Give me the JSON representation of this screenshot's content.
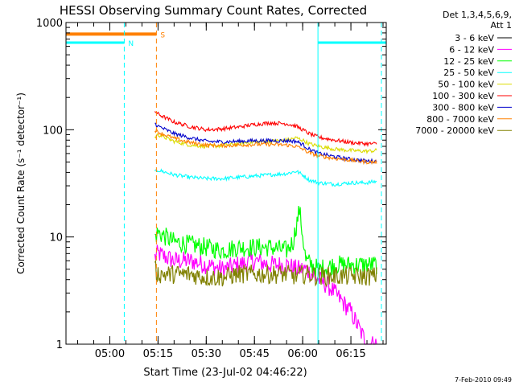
{
  "chart_data": {
    "type": "line",
    "title": "HESSI Observing Summary Count Rates, Corrected",
    "ylabel": "Corrected Count Rate (s⁻¹ detector⁻¹)",
    "xlabel": "Start Time (23-Jul-02 04:46:22)",
    "y_scale": "log",
    "ylim": [
      1,
      1000
    ],
    "xlim": [
      "04:46:22",
      "06:26:00"
    ],
    "y_ticks": [
      "1",
      "10",
      "100",
      "1000"
    ],
    "x_ticks": [
      "05:00",
      "05:15",
      "05:30",
      "05:45",
      "06:00",
      "06:15"
    ],
    "legend_header": [
      "Det 1,3,4,5,6,9,",
      "Att 1"
    ],
    "legend_position": "right",
    "footer_date": "7-Feb-2010 09:49",
    "flag_labels": {
      "night": "N",
      "saa": "S"
    },
    "series": [
      {
        "name": "3 - 6 keV",
        "color": "#000000",
        "x": [],
        "y": []
      },
      {
        "name": "6 - 12 keV",
        "color": "#ff00ff",
        "x": [
          "05:14",
          "05:15",
          "05:20",
          "05:25",
          "05:30",
          "05:35",
          "05:40",
          "05:45",
          "05:50",
          "05:55",
          "05:58",
          "06:01",
          "06:05",
          "06:08",
          "06:10",
          "06:15",
          "06:20",
          "06:23"
        ],
        "y": [
          6.5,
          7,
          6,
          6,
          5.5,
          5,
          5.5,
          6,
          5.5,
          5.5,
          5,
          5,
          4,
          3.5,
          3,
          2,
          1,
          1
        ]
      },
      {
        "name": "12 - 25 keV",
        "color": "#00ff00",
        "x": [
          "05:14",
          "05:15",
          "05:20",
          "05:25",
          "05:30",
          "05:35",
          "05:40",
          "05:45",
          "05:50",
          "05:55",
          "05:57",
          "05:59",
          "06:01",
          "06:05",
          "06:10",
          "06:15",
          "06:20",
          "06:23"
        ],
        "y": [
          10,
          11,
          9,
          8.5,
          8,
          7.5,
          8,
          8,
          8,
          7.5,
          9,
          18,
          6,
          5,
          5.5,
          5.5,
          5.5,
          5.5
        ]
      },
      {
        "name": "25 - 50 keV",
        "color": "#00ffff",
        "x": [
          "05:14",
          "05:15",
          "05:20",
          "05:25",
          "05:30",
          "05:35",
          "05:40",
          "05:45",
          "05:50",
          "05:55",
          "05:58",
          "06:00",
          "06:02",
          "06:05",
          "06:10",
          "06:15",
          "06:20",
          "06:23"
        ],
        "y": [
          40,
          42,
          38,
          36,
          35,
          35,
          36,
          37,
          38,
          39,
          41,
          38,
          34,
          32,
          31,
          32,
          32,
          33
        ]
      },
      {
        "name": "50 - 100 keV",
        "color": "#dcdc00",
        "x": [
          "05:14",
          "05:15",
          "05:20",
          "05:25",
          "05:30",
          "05:35",
          "05:40",
          "05:45",
          "05:50",
          "05:55",
          "05:58",
          "06:00",
          "06:02",
          "06:05",
          "06:10",
          "06:15",
          "06:20",
          "06:23"
        ],
        "y": [
          85,
          90,
          78,
          72,
          70,
          71,
          74,
          77,
          78,
          80,
          84,
          80,
          74,
          70,
          66,
          64,
          63,
          64
        ]
      },
      {
        "name": "100 - 300 keV",
        "color": "#ff0000",
        "x": [
          "05:14",
          "05:15",
          "05:20",
          "05:25",
          "05:30",
          "05:35",
          "05:40",
          "05:45",
          "05:50",
          "05:55",
          "05:58",
          "06:00",
          "06:02",
          "06:05",
          "06:10",
          "06:15",
          "06:20",
          "06:23"
        ],
        "y": [
          150,
          140,
          118,
          107,
          100,
          102,
          106,
          112,
          116,
          114,
          108,
          100,
          92,
          85,
          80,
          76,
          74,
          74
        ]
      },
      {
        "name": "300 - 800 keV",
        "color": "#0000cc",
        "x": [
          "05:14",
          "05:15",
          "05:20",
          "05:25",
          "05:30",
          "05:35",
          "05:40",
          "05:45",
          "05:50",
          "05:55",
          "05:58",
          "06:00",
          "06:02",
          "06:05",
          "06:10",
          "06:15",
          "06:20",
          "06:23"
        ],
        "y": [
          115,
          108,
          92,
          84,
          78,
          77,
          78,
          79,
          79,
          79,
          78,
          73,
          66,
          60,
          56,
          53,
          51,
          51
        ]
      },
      {
        "name": "800 - 7000 keV",
        "color": "#ff8000",
        "x": [
          "05:14",
          "05:15",
          "05:20",
          "05:25",
          "05:30",
          "05:35",
          "05:40",
          "05:45",
          "05:50",
          "05:55",
          "05:58",
          "06:00",
          "06:02",
          "06:05",
          "06:10",
          "06:15",
          "06:20",
          "06:23"
        ],
        "y": [
          100,
          95,
          83,
          76,
          72,
          71,
          72,
          73,
          73,
          72,
          70,
          66,
          61,
          57,
          54,
          52,
          50,
          50
        ]
      },
      {
        "name": "7000 - 20000 keV",
        "color": "#808000",
        "x": [
          "05:14",
          "05:15",
          "05:20",
          "05:25",
          "05:30",
          "05:35",
          "05:40",
          "05:45",
          "05:50",
          "05:55",
          "05:58",
          "06:00",
          "06:02",
          "06:05",
          "06:10",
          "06:15",
          "06:20",
          "06:23"
        ],
        "y": [
          5,
          4.5,
          4.5,
          4.5,
          4.2,
          4.2,
          4.5,
          4.5,
          4.5,
          4.5,
          4.3,
          4.5,
          4.5,
          4.3,
          4.3,
          4.3,
          4.3,
          4.3
        ]
      }
    ],
    "flags": {
      "night_intervals": [
        [
          "04:46:22",
          "05:04:30"
        ],
        [
          "06:04:45",
          "06:26:00"
        ]
      ],
      "night_level": 650,
      "saa_interval": [
        "04:46:22",
        "05:14:30"
      ],
      "saa_level": 780
    },
    "markers": [
      {
        "time": "05:04:30",
        "color": "#00ffff",
        "style": "dashed"
      },
      {
        "time": "05:14:30",
        "color": "#ff8000",
        "style": "dashed"
      },
      {
        "time": "06:04:45",
        "color": "#00ffff",
        "style": "solid"
      },
      {
        "time": "06:24:30",
        "color": "#00ffff",
        "style": "dashed"
      }
    ]
  }
}
